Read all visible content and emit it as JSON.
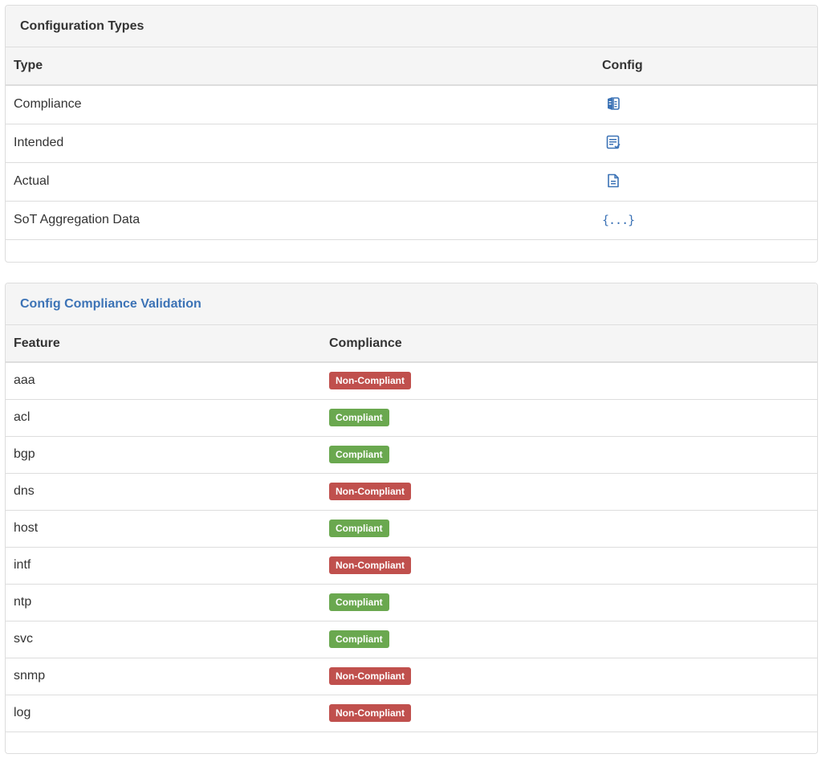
{
  "colors": {
    "link_blue": "#3c73b6",
    "non_compliant": "#c0504d",
    "compliant": "#6aa84f",
    "header_bg": "#f5f5f5",
    "border": "#dddddd"
  },
  "config_types": {
    "title": "Configuration Types",
    "columns": {
      "type": "Type",
      "config": "Config"
    },
    "rows": [
      {
        "type": "Compliance",
        "icon": "compliance-book-icon"
      },
      {
        "type": "Intended",
        "icon": "intended-checklist-icon"
      },
      {
        "type": "Actual",
        "icon": "actual-file-icon"
      },
      {
        "type": "SoT Aggregation Data",
        "icon": "json-braces-icon",
        "icon_text": "{...}"
      }
    ]
  },
  "compliance_validation": {
    "title": "Config Compliance Validation",
    "columns": {
      "feature": "Feature",
      "compliance": "Compliance"
    },
    "rows": [
      {
        "feature": "aaa",
        "status": "Non-Compliant",
        "state": "red"
      },
      {
        "feature": "acl",
        "status": "Compliant",
        "state": "green"
      },
      {
        "feature": "bgp",
        "status": "Compliant",
        "state": "green"
      },
      {
        "feature": "dns",
        "status": "Non-Compliant",
        "state": "red"
      },
      {
        "feature": "host",
        "status": "Compliant",
        "state": "green"
      },
      {
        "feature": "intf",
        "status": "Non-Compliant",
        "state": "red"
      },
      {
        "feature": "ntp",
        "status": "Compliant",
        "state": "green"
      },
      {
        "feature": "svc",
        "status": "Compliant",
        "state": "green"
      },
      {
        "feature": "snmp",
        "status": "Non-Compliant",
        "state": "red"
      },
      {
        "feature": "log",
        "status": "Non-Compliant",
        "state": "red"
      }
    ]
  }
}
